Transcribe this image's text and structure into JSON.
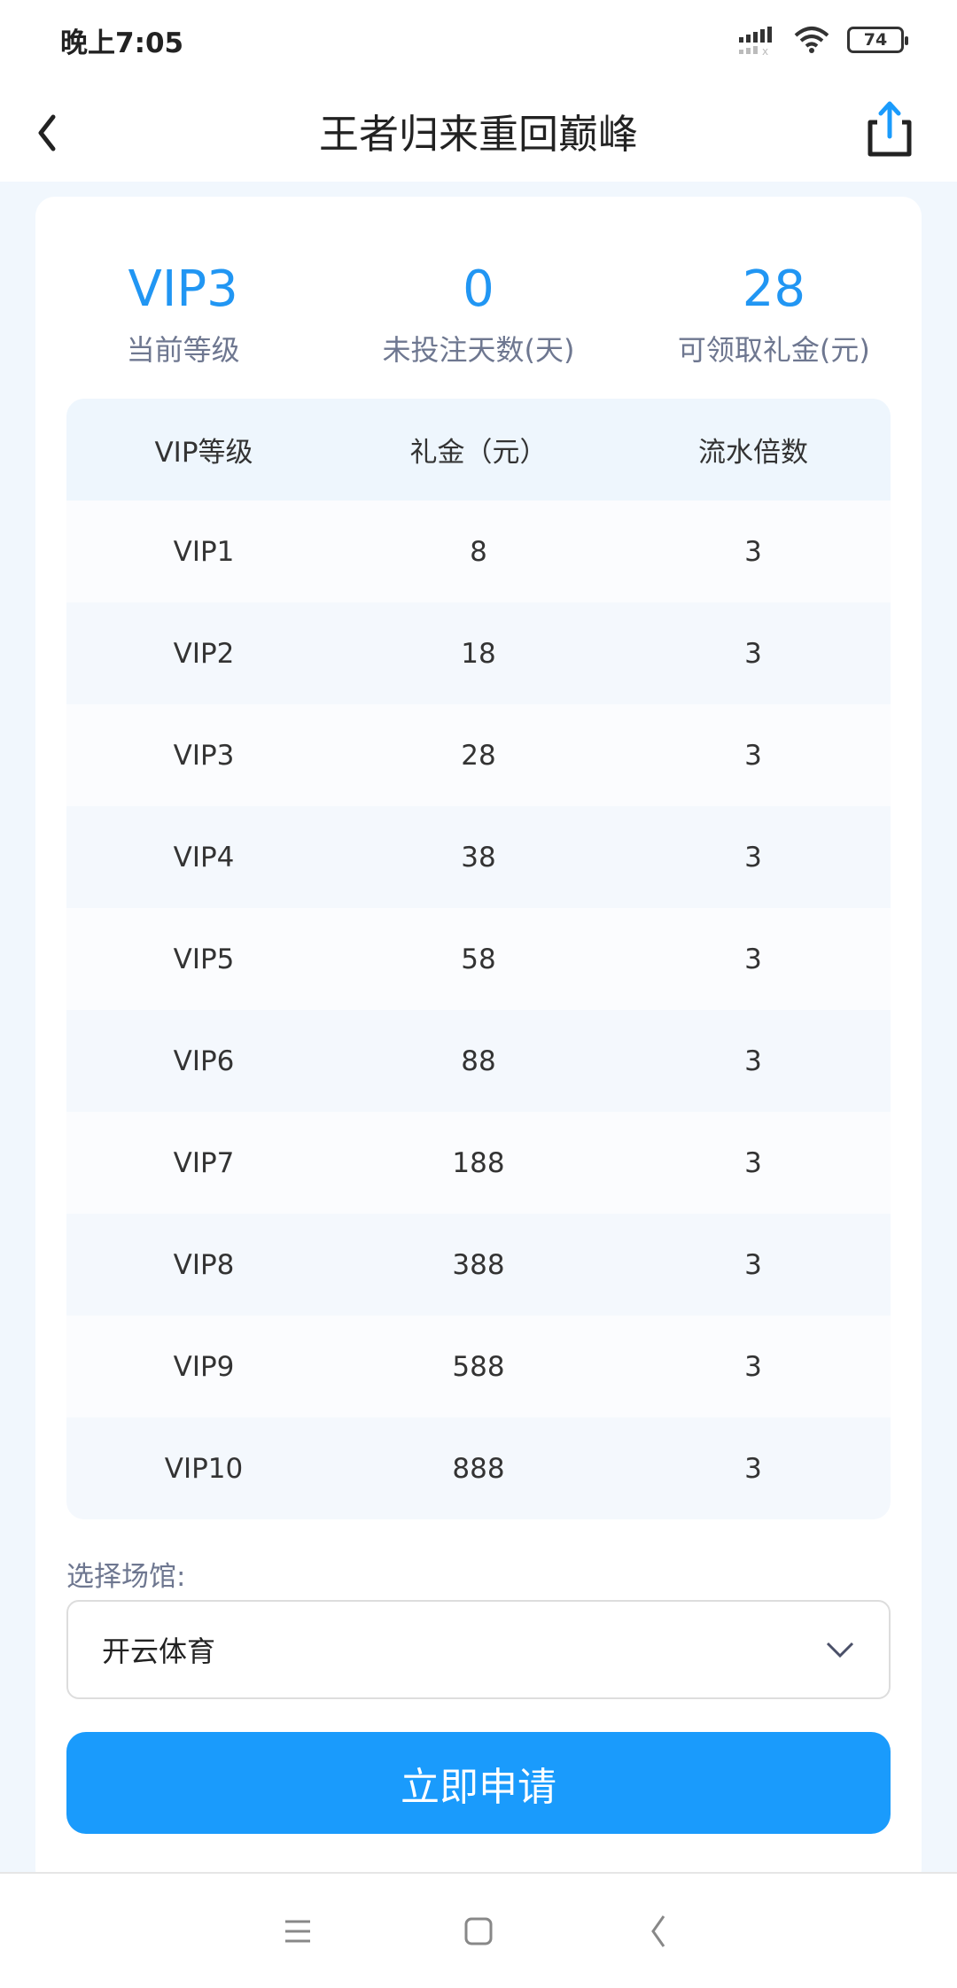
{
  "status_bar": {
    "time": "晚上7:05",
    "battery": "74"
  },
  "header": {
    "title": "王者归来重回巅峰"
  },
  "stats": [
    {
      "value": "VIP3",
      "label": "当前等级"
    },
    {
      "value": "0",
      "label": "未投注天数(天)"
    },
    {
      "value": "28",
      "label": "可领取礼金(元)"
    }
  ],
  "table": {
    "headers": [
      "VIP等级",
      "礼金（元）",
      "流水倍数"
    ],
    "rows": [
      [
        "VIP1",
        "8",
        "3"
      ],
      [
        "VIP2",
        "18",
        "3"
      ],
      [
        "VIP3",
        "28",
        "3"
      ],
      [
        "VIP4",
        "38",
        "3"
      ],
      [
        "VIP5",
        "58",
        "3"
      ],
      [
        "VIP6",
        "88",
        "3"
      ],
      [
        "VIP7",
        "188",
        "3"
      ],
      [
        "VIP8",
        "388",
        "3"
      ],
      [
        "VIP9",
        "588",
        "3"
      ],
      [
        "VIP10",
        "888",
        "3"
      ]
    ]
  },
  "venue": {
    "label": "选择场馆:",
    "selected": "开云体育"
  },
  "apply_button": "立即申请",
  "colors": {
    "accent": "#1a9bfc",
    "background": "#f1f7fd"
  }
}
